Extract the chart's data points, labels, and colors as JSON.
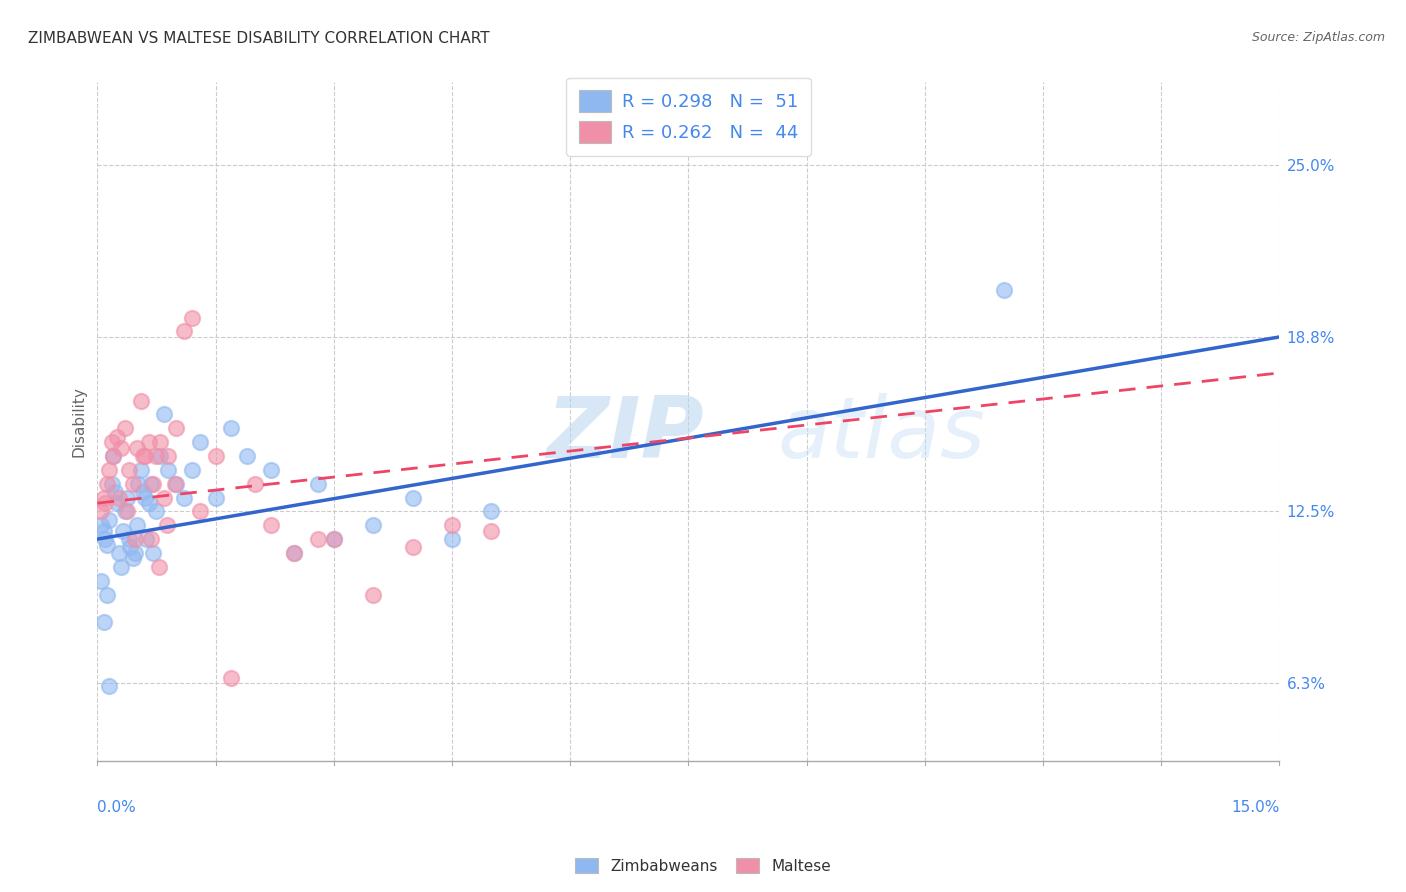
{
  "title": "ZIMBABWEAN VS MALTESE DISABILITY CORRELATION CHART",
  "source": "Source: ZipAtlas.com",
  "ylabel": "Disability",
  "xlim": [
    0.0,
    15.0
  ],
  "ylim": [
    3.5,
    28.0
  ],
  "right_yticks": [
    6.3,
    12.5,
    18.8,
    25.0
  ],
  "right_yticklabels": [
    "6.3%",
    "12.5%",
    "18.8%",
    "25.0%"
  ],
  "legend_r1": "R = 0.298   N =  51",
  "legend_r2": "R = 0.262   N =  44",
  "zim_color": "#90b8f0",
  "mal_color": "#f090a8",
  "trend_zim_color": "#3366cc",
  "trend_mal_color": "#ee4466",
  "blue_text_color": "#4488ee",
  "title_color": "#333333",
  "grid_color": "#cccccc",
  "watermark_zip": "ZIP",
  "watermark_atlas": "atlas",
  "zim_x": [
    0.05,
    0.08,
    0.1,
    0.12,
    0.15,
    0.18,
    0.2,
    0.22,
    0.25,
    0.28,
    0.3,
    0.32,
    0.35,
    0.38,
    0.4,
    0.42,
    0.45,
    0.48,
    0.5,
    0.52,
    0.55,
    0.58,
    0.6,
    0.62,
    0.65,
    0.68,
    0.7,
    0.75,
    0.8,
    0.85,
    0.9,
    1.0,
    1.1,
    1.2,
    1.3,
    1.5,
    1.7,
    1.9,
    2.2,
    2.5,
    2.8,
    3.0,
    3.5,
    4.0,
    4.5,
    5.0,
    0.05,
    0.08,
    0.12,
    0.15,
    11.5
  ],
  "zim_y": [
    12.0,
    11.8,
    11.5,
    11.3,
    12.2,
    13.5,
    14.5,
    13.2,
    12.8,
    11.0,
    10.5,
    11.8,
    12.5,
    13.0,
    11.5,
    11.2,
    10.8,
    11.0,
    12.0,
    13.5,
    14.0,
    13.2,
    13.0,
    11.5,
    12.8,
    13.5,
    11.0,
    12.5,
    14.5,
    16.0,
    14.0,
    13.5,
    13.0,
    14.0,
    15.0,
    13.0,
    15.5,
    14.5,
    14.0,
    11.0,
    13.5,
    11.5,
    12.0,
    13.0,
    11.5,
    12.5,
    10.0,
    8.5,
    9.5,
    6.2,
    20.5
  ],
  "mal_x": [
    0.05,
    0.08,
    0.1,
    0.12,
    0.15,
    0.18,
    0.2,
    0.25,
    0.3,
    0.35,
    0.4,
    0.45,
    0.5,
    0.55,
    0.6,
    0.65,
    0.7,
    0.75,
    0.8,
    0.85,
    0.9,
    1.0,
    1.1,
    1.2,
    1.5,
    2.0,
    2.5,
    3.0,
    3.5,
    4.0,
    4.5,
    5.0,
    0.28,
    0.38,
    0.48,
    0.58,
    0.68,
    0.78,
    0.88,
    0.98,
    1.3,
    1.7,
    2.2,
    2.8
  ],
  "mal_y": [
    12.5,
    13.0,
    12.8,
    13.5,
    14.0,
    15.0,
    14.5,
    15.2,
    14.8,
    15.5,
    14.0,
    13.5,
    14.8,
    16.5,
    14.5,
    15.0,
    13.5,
    14.5,
    15.0,
    13.0,
    14.5,
    15.5,
    19.0,
    19.5,
    14.5,
    13.5,
    11.0,
    11.5,
    9.5,
    11.2,
    12.0,
    11.8,
    13.0,
    12.5,
    11.5,
    14.5,
    11.5,
    10.5,
    12.0,
    13.5,
    12.5,
    6.5,
    12.0,
    11.5
  ],
  "trend_zim_x0": 0.0,
  "trend_zim_y0": 11.5,
  "trend_zim_x1": 15.0,
  "trend_zim_y1": 18.8,
  "trend_mal_x0": 0.0,
  "trend_mal_y0": 12.8,
  "trend_mal_x1": 15.0,
  "trend_mal_y1": 17.5
}
